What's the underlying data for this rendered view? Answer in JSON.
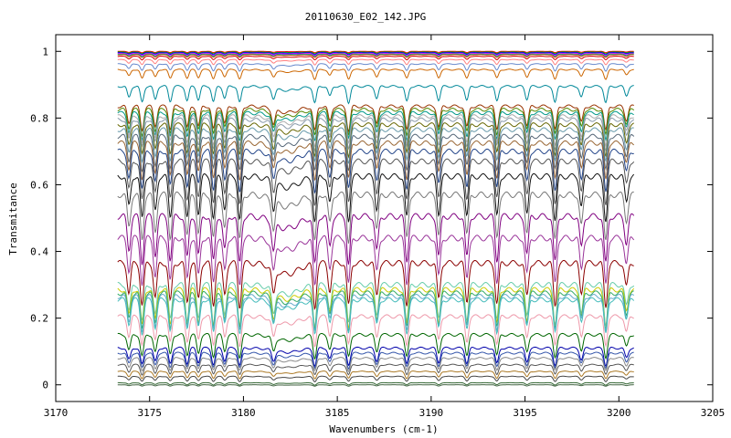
{
  "chart_data": {
    "type": "line",
    "title": "20110630_E02_142.JPG",
    "xlabel": "Wavenumbers (cm-1)",
    "ylabel": "Transmitance",
    "xlim": [
      3170,
      3205
    ],
    "ylim": [
      -0.05,
      1.05
    ],
    "x_ticks": [
      3170,
      3175,
      3180,
      3185,
      3190,
      3195,
      3200,
      3205
    ],
    "x_tick_labels": [
      "3170",
      "3175",
      "3180",
      "3185",
      "3190",
      "3195",
      "3200",
      "3205"
    ],
    "y_ticks": [
      0,
      0.2,
      0.4,
      0.6,
      0.8,
      1
    ],
    "y_tick_labels": [
      "0",
      "0.2",
      "0.4",
      "0.6",
      "0.8",
      "1"
    ],
    "x_range_of_data": [
      3173.3,
      3200.8
    ],
    "absorption_lines": [
      3173.9,
      3174.6,
      3175.3,
      3176.1,
      3177.0,
      3177.6,
      3178.4,
      3179.0,
      3179.8,
      3181.6,
      3183.8,
      3184.6,
      3185.6,
      3187.1,
      3188.7,
      3190.4,
      3191.9,
      3193.5,
      3195.1,
      3196.6,
      3198.0,
      3199.3,
      3200.4
    ],
    "grid": false,
    "legend": "none",
    "series": [
      {
        "baseline": 1.0,
        "color": "#ff0000"
      },
      {
        "baseline": 0.998,
        "color": "#00aa00"
      },
      {
        "baseline": 0.996,
        "color": "#0000ff"
      },
      {
        "baseline": 0.994,
        "color": "#ff00ff"
      },
      {
        "baseline": 0.992,
        "color": "#00aaaa"
      },
      {
        "baseline": 0.99,
        "color": "#aa5500"
      },
      {
        "baseline": 0.985,
        "color": "#d00000"
      },
      {
        "baseline": 0.975,
        "color": "#ff8080"
      },
      {
        "baseline": 0.962,
        "color": "#6688cc"
      },
      {
        "baseline": 0.945,
        "color": "#cc6600"
      },
      {
        "baseline": 0.895,
        "color": "#008899"
      },
      {
        "baseline": 0.835,
        "color": "#993300"
      },
      {
        "baseline": 0.825,
        "color": "#558800"
      },
      {
        "baseline": 0.815,
        "color": "#009988"
      },
      {
        "baseline": 0.805,
        "color": "#aaaaaa"
      },
      {
        "baseline": 0.795,
        "color": "#8899aa"
      },
      {
        "baseline": 0.78,
        "color": "#666600"
      },
      {
        "baseline": 0.765,
        "color": "#6699aa"
      },
      {
        "baseline": 0.745,
        "color": "#556677"
      },
      {
        "baseline": 0.725,
        "color": "#996633"
      },
      {
        "baseline": 0.7,
        "color": "#224488"
      },
      {
        "baseline": 0.67,
        "color": "#555555"
      },
      {
        "baseline": 0.625,
        "color": "#111111"
      },
      {
        "baseline": 0.57,
        "color": "#777777"
      },
      {
        "baseline": 0.505,
        "color": "#800080"
      },
      {
        "baseline": 0.44,
        "color": "#993399"
      },
      {
        "baseline": 0.365,
        "color": "#8b0000"
      },
      {
        "baseline": 0.3,
        "color": "#66ccaa"
      },
      {
        "baseline": 0.285,
        "color": "#cccc00"
      },
      {
        "baseline": 0.275,
        "color": "#33aa66"
      },
      {
        "baseline": 0.265,
        "color": "#66aacc"
      },
      {
        "baseline": 0.255,
        "color": "#44bbbb"
      },
      {
        "baseline": 0.205,
        "color": "#ee99aa"
      },
      {
        "baseline": 0.15,
        "color": "#006600"
      },
      {
        "baseline": 0.11,
        "color": "#0000aa"
      },
      {
        "baseline": 0.095,
        "color": "#3355aa"
      },
      {
        "baseline": 0.08,
        "color": "#888888"
      },
      {
        "baseline": 0.06,
        "color": "#555555"
      },
      {
        "baseline": 0.04,
        "color": "#aa7722"
      },
      {
        "baseline": 0.025,
        "color": "#444444"
      },
      {
        "baseline": 0.006,
        "color": "#336633"
      },
      {
        "baseline": 0.0,
        "color": "#446644"
      }
    ]
  }
}
